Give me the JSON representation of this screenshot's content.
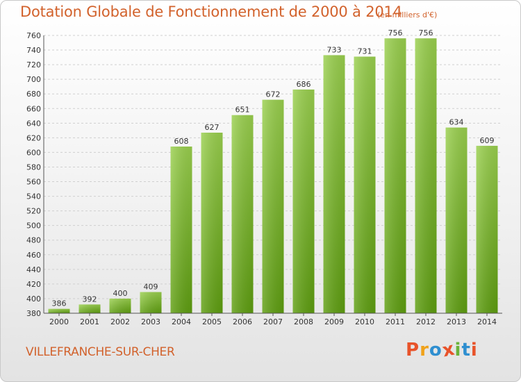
{
  "header": {
    "title": "Dotation Globale de Fonctionnement de 2000 à 2014",
    "unit_note": "(en milliers d'€)"
  },
  "footer": {
    "city": "VILLEFRANCHE-SUR-CHER",
    "logo_text": "Proxiti",
    "logo_colors": [
      "#e8532a",
      "#f0a21a",
      "#2f8fd0",
      "#e8532a",
      "#6bb33a",
      "#2f8fd0",
      "#e8532a"
    ]
  },
  "colors": {
    "title": "#d2622c",
    "bar_top": "#9ad04e",
    "bar_bottom": "#5e9e10",
    "grid": "#cfcfcf"
  },
  "chart_data": {
    "type": "bar",
    "title": "Dotation Globale de Fonctionnement de 2000 à 2014",
    "subtitle": "(en milliers d'€)",
    "xlabel": "",
    "ylabel": "",
    "categories": [
      "2000",
      "2001",
      "2002",
      "2003",
      "2004",
      "2005",
      "2006",
      "2007",
      "2008",
      "2009",
      "2010",
      "2011",
      "2012",
      "2013",
      "2014"
    ],
    "values": [
      386,
      392,
      400,
      409,
      608,
      627,
      651,
      672,
      686,
      733,
      731,
      756,
      756,
      634,
      609
    ],
    "ylim": [
      380,
      760
    ],
    "yticks": [
      380,
      400,
      420,
      440,
      460,
      480,
      500,
      520,
      540,
      560,
      580,
      600,
      620,
      640,
      660,
      680,
      700,
      720,
      740,
      760
    ],
    "grid": true,
    "legend": "none"
  }
}
